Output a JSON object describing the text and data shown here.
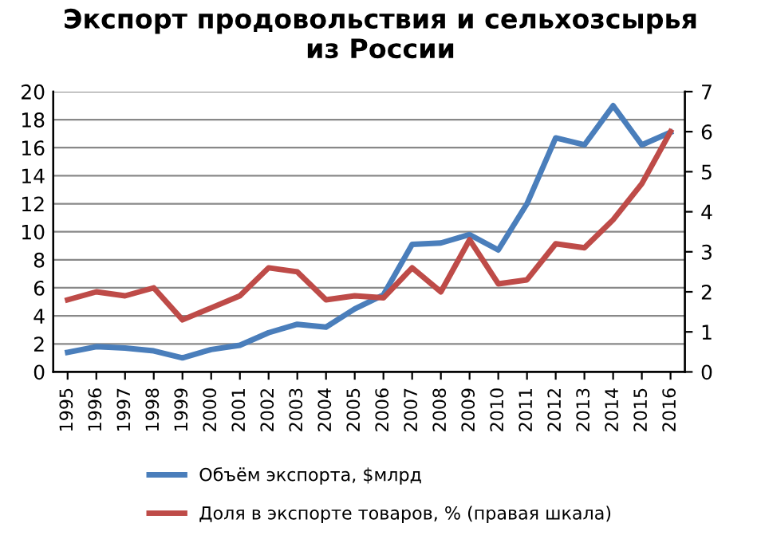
{
  "chart_data": {
    "type": "line",
    "title": "Экспорт продовольствия и сельхозсырья\nиз России",
    "categories": [
      "1995",
      "1996",
      "1997",
      "1998",
      "1999",
      "2000",
      "2001",
      "2002",
      "2003",
      "2004",
      "2005",
      "2006",
      "2007",
      "2008",
      "2009",
      "2010",
      "2011",
      "2012",
      "2013",
      "2014",
      "2015",
      "2016"
    ],
    "series": [
      {
        "name": "Объём экспорта, $млрд",
        "color": "#4a7ebb",
        "values": [
          1.4,
          1.8,
          1.7,
          1.5,
          1.0,
          1.6,
          1.9,
          2.8,
          3.4,
          3.2,
          4.5,
          5.5,
          9.1,
          9.2,
          9.8,
          8.7,
          12.0,
          16.7,
          16.2,
          19.0,
          16.2,
          17.1
        ]
      },
      {
        "name": "Доля в экспорте товаров, % (правая шкала)",
        "color": "#be4b48",
        "axis": "y2",
        "values": [
          1.8,
          2.0,
          1.9,
          2.1,
          1.3,
          1.6,
          1.9,
          2.6,
          2.5,
          1.8,
          1.9,
          1.85,
          2.6,
          2.0,
          3.3,
          2.2,
          2.3,
          3.2,
          3.1,
          3.8,
          4.7,
          6.0
        ]
      }
    ],
    "ylim": [
      0,
      20
    ],
    "yticks": [
      0,
      2,
      4,
      6,
      8,
      10,
      12,
      14,
      16,
      18,
      20
    ],
    "y2lim": [
      0,
      7
    ],
    "y2ticks": [
      0,
      1,
      2,
      3,
      4,
      5,
      6,
      7
    ],
    "grid": "y",
    "legend": "bottom",
    "line_style": "solid",
    "marker": "none"
  }
}
